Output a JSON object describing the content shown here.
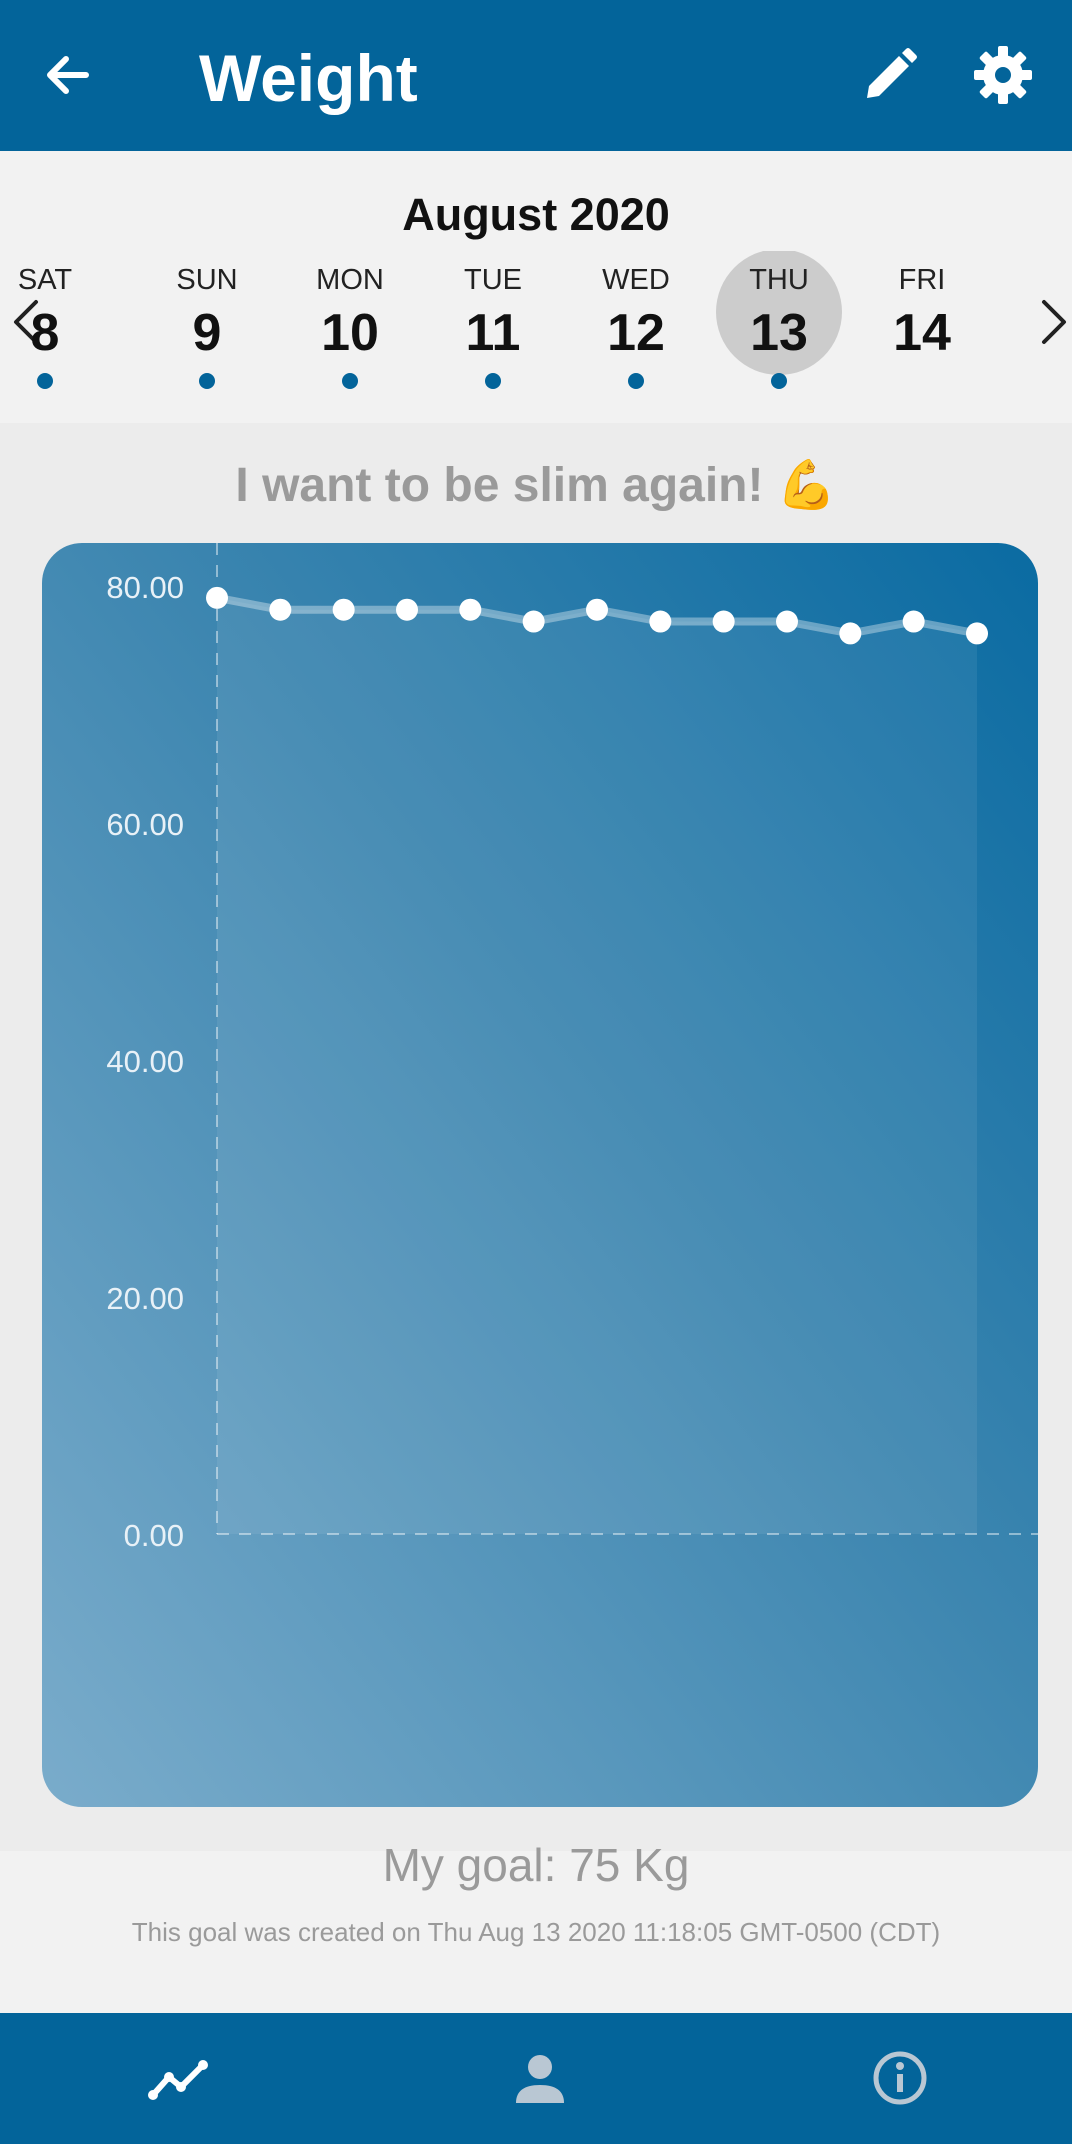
{
  "app_bar": {
    "title": "Weight",
    "icons": [
      "arrow-back-icon",
      "pencil-icon",
      "gear-icon"
    ]
  },
  "date_strip": {
    "month": "August 2020",
    "days": [
      {
        "name": "SAT",
        "num": "8",
        "has_entry": true,
        "selected": false
      },
      {
        "name": "SUN",
        "num": "9",
        "has_entry": true,
        "selected": false
      },
      {
        "name": "MON",
        "num": "10",
        "has_entry": true,
        "selected": false
      },
      {
        "name": "TUE",
        "num": "11",
        "has_entry": true,
        "selected": false
      },
      {
        "name": "WED",
        "num": "12",
        "has_entry": true,
        "selected": false
      },
      {
        "name": "THU",
        "num": "13",
        "has_entry": true,
        "selected": true
      },
      {
        "name": "FRI",
        "num": "14",
        "has_entry": false,
        "selected": false
      }
    ]
  },
  "motto": "I want to be slim again! 💪",
  "chart_data": {
    "type": "area",
    "x": [
      1,
      2,
      3,
      4,
      5,
      6,
      7,
      8,
      9,
      10,
      11,
      12,
      13
    ],
    "values": [
      79,
      78,
      78,
      78,
      78,
      77,
      78,
      77,
      77,
      77,
      76,
      77,
      76
    ],
    "y_ticks": [
      "80.00",
      "60.00",
      "40.00",
      "20.00",
      "0.00"
    ],
    "ylim": [
      0,
      80
    ],
    "grid": false
  },
  "goal": {
    "text": "My goal: 75 Kg",
    "created": "This goal was created on Thu Aug 13 2020 11:18:05 GMT-0500 (CDT)"
  },
  "colors": {
    "primary": "#03649a",
    "selected_day": "#cccccc",
    "muted_text": "#9a9a9a"
  },
  "bottom_nav": {
    "icons": [
      "chart-line-icon",
      "person-icon",
      "info-icon"
    ]
  }
}
